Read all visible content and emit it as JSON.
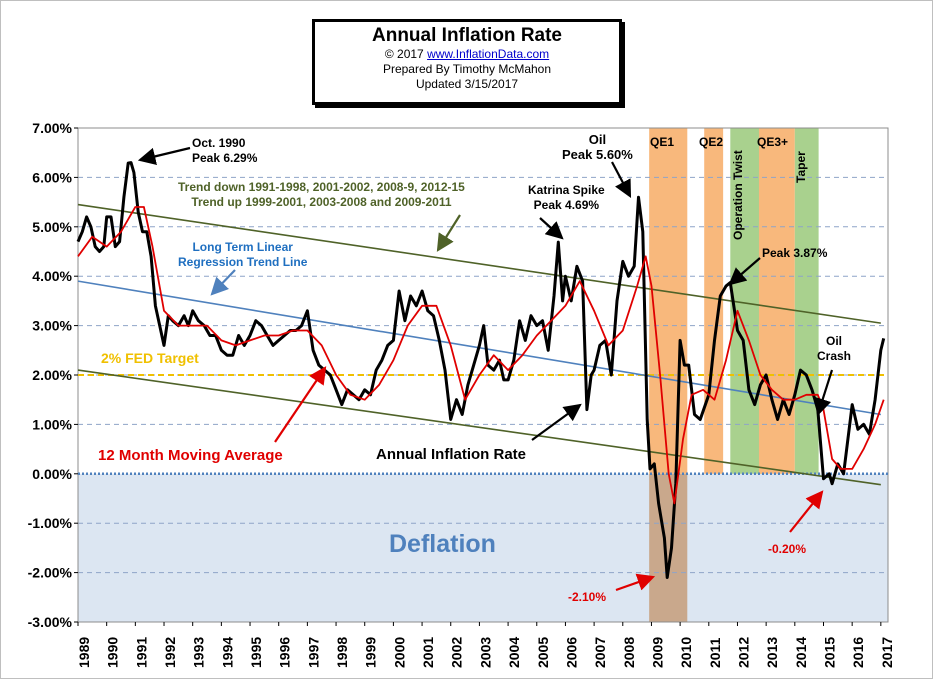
{
  "header": {
    "title": "Annual  Inflation Rate",
    "copyright_prefix": "© 2017",
    "site": "www.InflationData.com",
    "prepared": "Prepared  By Timothy McMahon",
    "updated": "Updated   3/15/2017"
  },
  "colors": {
    "inflation": "#000000",
    "moving_average": "#e00000",
    "trend_lines": "#4f6228",
    "regression": "#4f81bd",
    "fed_target": "#f0c000",
    "qe_band": "#f8b87c",
    "twist_taper_band": "#a9d18e",
    "crisis_band": "#c9a88c",
    "deflation_area": "#dce6f2",
    "grid": "#8ea4c8"
  },
  "annotations": {
    "oct1990_line1": "Oct. 1990",
    "oct1990_line2": "Peak 6.29%",
    "trend_line1": "Trend down 1991-1998,  2001-2002,  2008-9,  2012-15",
    "trend_line2": "Trend  up  1999-2001,  2003-2008  and 2009-2011",
    "regression_line1": "Long Term Linear",
    "regression_line2": "Regression Trend Line",
    "fed_target": "2% FED Target",
    "moving_average": "12 Month Moving Average",
    "annual_rate": "Annual Inflation Rate",
    "katrina_line1": "Katrina Spike",
    "katrina_line2": "Peak 4.69%",
    "oil_line1": "Oil",
    "oil_line2": "Peak 5.60%",
    "peak387": "Peak 3.87%",
    "oil_crash_line1": "Oil",
    "oil_crash_line2": "Crash",
    "low_210": "-2.10%",
    "low_020": "-0.20%",
    "deflation": "Deflation",
    "qe1": "QE1",
    "qe2": "QE2",
    "qe3": "QE3+",
    "operation_twist": "Operation Twist",
    "taper": "Taper"
  },
  "chart_data": {
    "type": "line",
    "title": "Annual  Inflation Rate",
    "ylim": [
      -3,
      7
    ],
    "xlim": [
      1989,
      2017.25
    ],
    "grid": true,
    "y_ticks": [
      "7.00%",
      "6.00%",
      "5.00%",
      "4.00%",
      "3.00%",
      "2.00%",
      "1.00%",
      "0.00%",
      "-1.00%",
      "-2.00%",
      "-3.00%"
    ],
    "x_ticks": [
      "1989",
      "1990",
      "1991",
      "1992",
      "1993",
      "1994",
      "1995",
      "1996",
      "1997",
      "1998",
      "1999",
      "2000",
      "2001",
      "2002",
      "2003",
      "2004",
      "2005",
      "2006",
      "2007",
      "2008",
      "2009",
      "2010",
      "2011",
      "2012",
      "2013",
      "2014",
      "2015",
      "2016",
      "2017"
    ],
    "bands": [
      {
        "label": "QE1",
        "start": 2008.92,
        "end": 2010.25,
        "kind": "qe"
      },
      {
        "label": "QE2",
        "start": 2010.84,
        "end": 2011.5,
        "kind": "qe"
      },
      {
        "label": "Operation Twist",
        "start": 2011.75,
        "end": 2012.92,
        "kind": "twist"
      },
      {
        "label": "QE3+",
        "start": 2012.75,
        "end": 2014.0,
        "kind": "qe"
      },
      {
        "label": "Taper",
        "start": 2014.0,
        "end": 2014.83,
        "kind": "twist"
      }
    ],
    "reference_lines": [
      {
        "name": "2% FED Target",
        "y": 2.0
      },
      {
        "name": "Long Term Linear Regression Trend Line",
        "points": [
          [
            1989,
            3.9
          ],
          [
            2017,
            1.2
          ]
        ]
      },
      {
        "name": "Upper channel",
        "points": [
          [
            1989,
            5.45
          ],
          [
            2017,
            3.05
          ]
        ]
      },
      {
        "name": "Lower channel",
        "points": [
          [
            1989,
            2.1
          ],
          [
            2017,
            -0.22
          ]
        ]
      }
    ],
    "series": [
      {
        "name": "Annual Inflation Rate",
        "points": [
          [
            1989.0,
            4.7
          ],
          [
            1989.15,
            4.9
          ],
          [
            1989.3,
            5.2
          ],
          [
            1989.45,
            5.0
          ],
          [
            1989.6,
            4.6
          ],
          [
            1989.75,
            4.5
          ],
          [
            1989.9,
            4.6
          ],
          [
            1990.0,
            5.2
          ],
          [
            1990.15,
            5.2
          ],
          [
            1990.3,
            4.6
          ],
          [
            1990.45,
            4.7
          ],
          [
            1990.6,
            5.6
          ],
          [
            1990.75,
            6.29
          ],
          [
            1990.85,
            6.3
          ],
          [
            1990.95,
            6.1
          ],
          [
            1991.1,
            5.3
          ],
          [
            1991.25,
            4.9
          ],
          [
            1991.4,
            4.9
          ],
          [
            1991.55,
            4.4
          ],
          [
            1991.7,
            3.4
          ],
          [
            1991.85,
            3.0
          ],
          [
            1992.0,
            2.6
          ],
          [
            1992.15,
            3.2
          ],
          [
            1992.3,
            3.1
          ],
          [
            1992.5,
            3.0
          ],
          [
            1992.7,
            3.2
          ],
          [
            1992.85,
            3.0
          ],
          [
            1993.0,
            3.3
          ],
          [
            1993.2,
            3.1
          ],
          [
            1993.4,
            3.0
          ],
          [
            1993.6,
            2.8
          ],
          [
            1993.8,
            2.8
          ],
          [
            1994.0,
            2.5
          ],
          [
            1994.2,
            2.4
          ],
          [
            1994.4,
            2.4
          ],
          [
            1994.6,
            2.8
          ],
          [
            1994.8,
            2.6
          ],
          [
            1995.0,
            2.8
          ],
          [
            1995.2,
            3.1
          ],
          [
            1995.4,
            3.0
          ],
          [
            1995.6,
            2.8
          ],
          [
            1995.8,
            2.6
          ],
          [
            1996.0,
            2.7
          ],
          [
            1996.2,
            2.8
          ],
          [
            1996.4,
            2.9
          ],
          [
            1996.6,
            2.9
          ],
          [
            1996.8,
            3.0
          ],
          [
            1997.0,
            3.3
          ],
          [
            1997.2,
            2.5
          ],
          [
            1997.4,
            2.2
          ],
          [
            1997.6,
            2.1
          ],
          [
            1997.8,
            2.0
          ],
          [
            1998.0,
            1.7
          ],
          [
            1998.2,
            1.4
          ],
          [
            1998.4,
            1.7
          ],
          [
            1998.6,
            1.6
          ],
          [
            1998.8,
            1.5
          ],
          [
            1999.0,
            1.7
          ],
          [
            1999.2,
            1.6
          ],
          [
            1999.4,
            2.1
          ],
          [
            1999.6,
            2.3
          ],
          [
            1999.8,
            2.6
          ],
          [
            2000.0,
            2.7
          ],
          [
            2000.2,
            3.7
          ],
          [
            2000.4,
            3.1
          ],
          [
            2000.6,
            3.6
          ],
          [
            2000.8,
            3.4
          ],
          [
            2001.0,
            3.7
          ],
          [
            2001.2,
            3.3
          ],
          [
            2001.4,
            3.2
          ],
          [
            2001.6,
            2.7
          ],
          [
            2001.8,
            2.1
          ],
          [
            2002.0,
            1.1
          ],
          [
            2002.2,
            1.5
          ],
          [
            2002.4,
            1.2
          ],
          [
            2002.6,
            1.8
          ],
          [
            2002.8,
            2.2
          ],
          [
            2003.0,
            2.6
          ],
          [
            2003.15,
            3.0
          ],
          [
            2003.3,
            2.2
          ],
          [
            2003.5,
            2.1
          ],
          [
            2003.7,
            2.3
          ],
          [
            2003.85,
            1.9
          ],
          [
            2004.0,
            1.9
          ],
          [
            2004.2,
            2.3
          ],
          [
            2004.4,
            3.1
          ],
          [
            2004.6,
            2.7
          ],
          [
            2004.8,
            3.2
          ],
          [
            2005.0,
            3.0
          ],
          [
            2005.2,
            3.1
          ],
          [
            2005.4,
            2.5
          ],
          [
            2005.6,
            3.6
          ],
          [
            2005.75,
            4.69
          ],
          [
            2005.9,
            3.5
          ],
          [
            2006.0,
            4.0
          ],
          [
            2006.2,
            3.5
          ],
          [
            2006.4,
            4.2
          ],
          [
            2006.6,
            3.9
          ],
          [
            2006.75,
            1.3
          ],
          [
            2006.9,
            2.0
          ],
          [
            2007.0,
            2.1
          ],
          [
            2007.2,
            2.6
          ],
          [
            2007.4,
            2.7
          ],
          [
            2007.6,
            2.0
          ],
          [
            2007.8,
            3.5
          ],
          [
            2008.0,
            4.3
          ],
          [
            2008.2,
            4.0
          ],
          [
            2008.4,
            4.2
          ],
          [
            2008.55,
            5.6
          ],
          [
            2008.7,
            4.9
          ],
          [
            2008.85,
            1.1
          ],
          [
            2008.95,
            0.1
          ],
          [
            2009.1,
            0.2
          ],
          [
            2009.25,
            -0.6
          ],
          [
            2009.45,
            -1.3
          ],
          [
            2009.55,
            -2.1
          ],
          [
            2009.7,
            -1.5
          ],
          [
            2009.85,
            -0.2
          ],
          [
            2010.0,
            2.7
          ],
          [
            2010.15,
            2.2
          ],
          [
            2010.3,
            2.2
          ],
          [
            2010.5,
            1.2
          ],
          [
            2010.7,
            1.1
          ],
          [
            2011.0,
            1.6
          ],
          [
            2011.2,
            2.7
          ],
          [
            2011.4,
            3.6
          ],
          [
            2011.6,
            3.8
          ],
          [
            2011.75,
            3.87
          ],
          [
            2012.0,
            2.9
          ],
          [
            2012.2,
            2.7
          ],
          [
            2012.4,
            1.7
          ],
          [
            2012.6,
            1.4
          ],
          [
            2012.8,
            1.8
          ],
          [
            2013.0,
            2.0
          ],
          [
            2013.2,
            1.5
          ],
          [
            2013.4,
            1.1
          ],
          [
            2013.6,
            1.5
          ],
          [
            2013.8,
            1.2
          ],
          [
            2014.0,
            1.6
          ],
          [
            2014.2,
            2.1
          ],
          [
            2014.4,
            2.0
          ],
          [
            2014.6,
            1.7
          ],
          [
            2014.8,
            1.3
          ],
          [
            2015.0,
            -0.1
          ],
          [
            2015.2,
            0.0
          ],
          [
            2015.3,
            -0.2
          ],
          [
            2015.5,
            0.2
          ],
          [
            2015.7,
            0.0
          ],
          [
            2016.0,
            1.4
          ],
          [
            2016.2,
            0.9
          ],
          [
            2016.4,
            1.0
          ],
          [
            2016.6,
            0.8
          ],
          [
            2016.8,
            1.5
          ],
          [
            2017.0,
            2.5
          ],
          [
            2017.1,
            2.74
          ]
        ]
      },
      {
        "name": "12 Month Moving Average",
        "points": [
          [
            1989.0,
            4.4
          ],
          [
            1989.5,
            4.8
          ],
          [
            1990.0,
            4.6
          ],
          [
            1990.5,
            4.9
          ],
          [
            1991.0,
            5.4
          ],
          [
            1991.3,
            5.4
          ],
          [
            1991.6,
            4.6
          ],
          [
            1992.0,
            3.3
          ],
          [
            1992.5,
            3.0
          ],
          [
            1993.0,
            3.0
          ],
          [
            1993.5,
            3.0
          ],
          [
            1994.0,
            2.7
          ],
          [
            1994.5,
            2.6
          ],
          [
            1995.0,
            2.7
          ],
          [
            1995.5,
            2.8
          ],
          [
            1996.0,
            2.8
          ],
          [
            1996.5,
            2.9
          ],
          [
            1997.0,
            2.9
          ],
          [
            1997.5,
            2.6
          ],
          [
            1998.0,
            2.0
          ],
          [
            1998.5,
            1.6
          ],
          [
            1999.0,
            1.5
          ],
          [
            1999.5,
            1.8
          ],
          [
            2000.0,
            2.3
          ],
          [
            2000.5,
            3.0
          ],
          [
            2001.0,
            3.4
          ],
          [
            2001.5,
            3.4
          ],
          [
            2002.0,
            2.6
          ],
          [
            2002.5,
            1.5
          ],
          [
            2003.0,
            2.0
          ],
          [
            2003.5,
            2.4
          ],
          [
            2004.0,
            2.1
          ],
          [
            2004.5,
            2.4
          ],
          [
            2005.0,
            2.8
          ],
          [
            2005.5,
            3.1
          ],
          [
            2006.0,
            3.4
          ],
          [
            2006.5,
            3.9
          ],
          [
            2007.0,
            3.3
          ],
          [
            2007.5,
            2.6
          ],
          [
            2008.0,
            2.9
          ],
          [
            2008.5,
            3.8
          ],
          [
            2008.8,
            4.4
          ],
          [
            2009.0,
            3.8
          ],
          [
            2009.3,
            2.0
          ],
          [
            2009.6,
            0.0
          ],
          [
            2009.8,
            -0.6
          ],
          [
            2010.1,
            0.7
          ],
          [
            2010.4,
            1.6
          ],
          [
            2010.8,
            1.7
          ],
          [
            2011.2,
            1.5
          ],
          [
            2011.6,
            2.3
          ],
          [
            2012.0,
            3.3
          ],
          [
            2012.4,
            2.7
          ],
          [
            2012.8,
            2.0
          ],
          [
            2013.2,
            1.7
          ],
          [
            2013.6,
            1.5
          ],
          [
            2014.0,
            1.5
          ],
          [
            2014.4,
            1.6
          ],
          [
            2014.8,
            1.6
          ],
          [
            2015.0,
            1.3
          ],
          [
            2015.3,
            0.3
          ],
          [
            2015.6,
            0.1
          ],
          [
            2016.0,
            0.1
          ],
          [
            2016.4,
            0.5
          ],
          [
            2016.8,
            1.0
          ],
          [
            2017.1,
            1.5
          ]
        ]
      }
    ]
  }
}
